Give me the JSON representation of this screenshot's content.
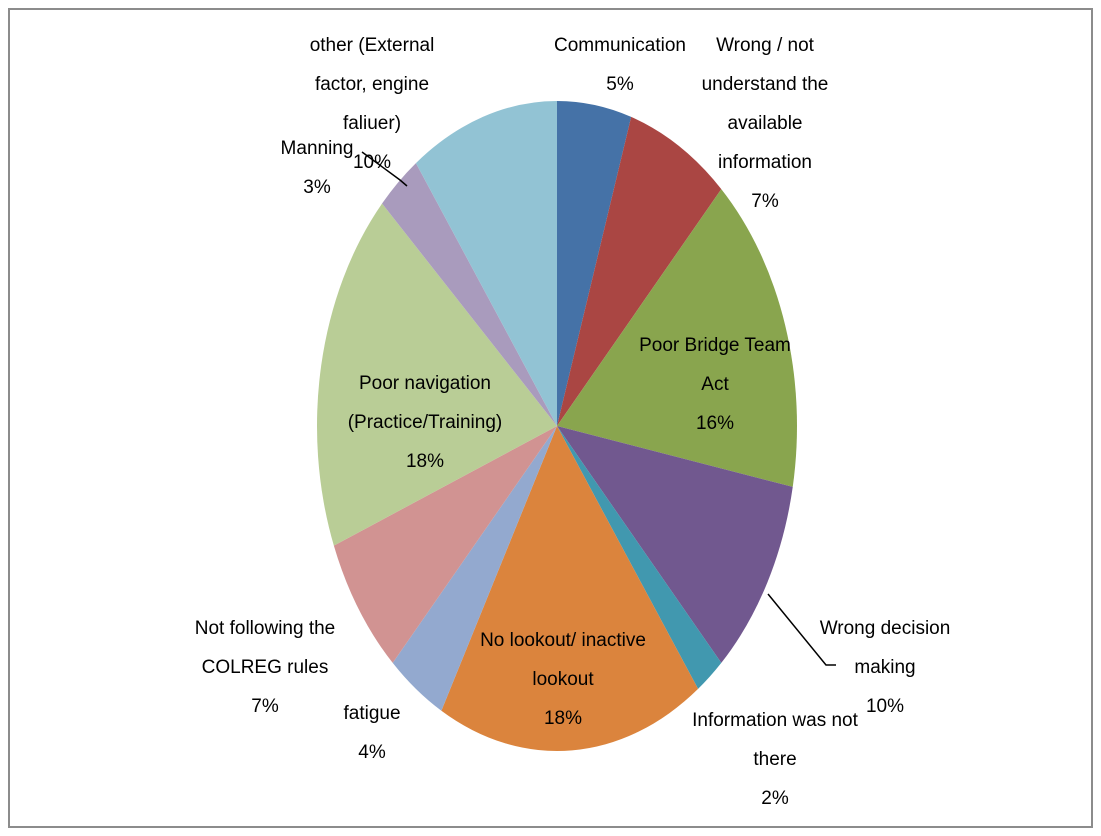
{
  "chart_data": {
    "type": "pie",
    "categories": [
      "Communication",
      "Wrong / not understand the available information",
      "Poor Bridge Team Act",
      "Wrong decision making",
      "Information was not there",
      "No lookout/ inactive lookout",
      "fatigue",
      "Not following the COLREG rules",
      "Poor navigation (Practice/Training)",
      "Manning",
      "other (External factor, engine faliuer)"
    ],
    "values": [
      5,
      7,
      16,
      10,
      2,
      18,
      4,
      7,
      18,
      3,
      10
    ],
    "value_labels": [
      "5%",
      "7%",
      "16%",
      "10%",
      "2%",
      "18%",
      "4%",
      "7%",
      "18%",
      "3%",
      "10%"
    ],
    "colors": [
      "#4572a7",
      "#aa4643",
      "#89a54e",
      "#71588f",
      "#4198af",
      "#db843d",
      "#93a9cf",
      "#d19392",
      "#b9cd96",
      "#a99bbd",
      "#92c3d4"
    ]
  }
}
